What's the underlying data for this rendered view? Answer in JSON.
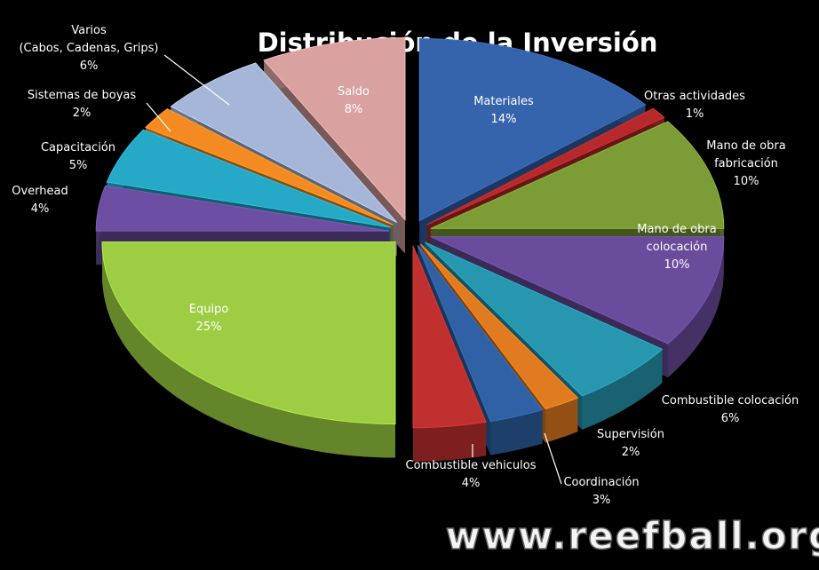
{
  "chart_data": {
    "type": "pie",
    "title": "Distribución de la Inversión",
    "categories": [
      "Materiales",
      "Otras actividades",
      "Mano de obra\nfabricación",
      "Mano de obra\ncolocación",
      "Combustible colocación",
      "Supervisión",
      "Coordinación",
      "Combustible vehiculos",
      "Equipo",
      "Overhead",
      "Capacitación",
      "Sistemas de boyas",
      "Varios\n(Cabos, Cadenas, Grips)",
      "Saldo"
    ],
    "values": [
      14,
      1,
      10,
      10,
      6,
      2,
      3,
      4,
      25,
      4,
      5,
      2,
      6,
      8
    ],
    "value_labels": [
      "14%",
      "1%",
      "10%",
      "10%",
      "6%",
      "2%",
      "3%",
      "4%",
      "25%",
      "4%",
      "5%",
      "2%",
      "6%",
      "8%"
    ],
    "colors": [
      "#3563ac",
      "#b8292b",
      "#7c9d36",
      "#6a4c9c",
      "#2697ae",
      "#e07b1f",
      "#2f61a4",
      "#c0302f",
      "#9ccd42",
      "#6c4fa2",
      "#25a9c6",
      "#f38b22",
      "#a5b6d8",
      "#d9a1a0"
    ]
  },
  "watermark": "www.reefball.org"
}
